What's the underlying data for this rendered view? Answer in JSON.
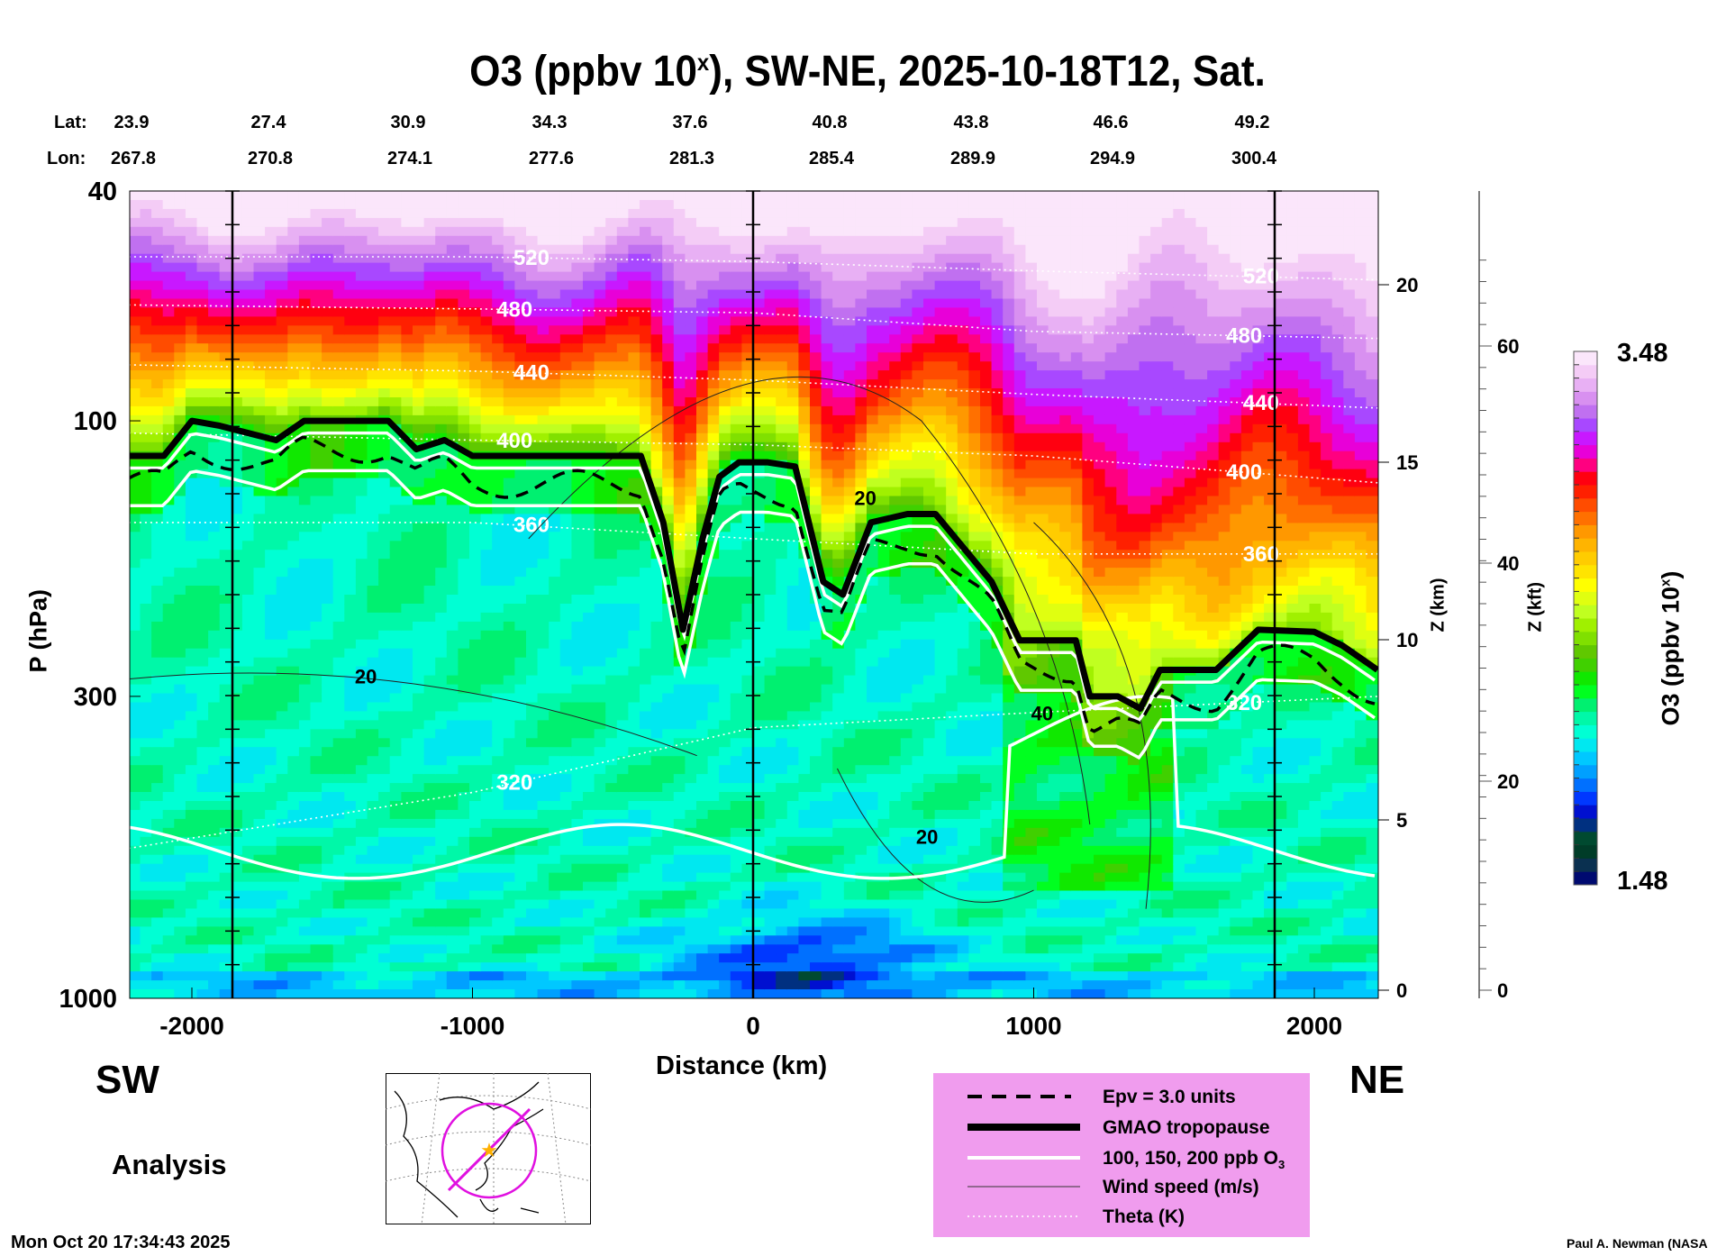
{
  "title": {
    "main": "O3 (ppbv 10",
    "sup": "x",
    "rest": "), SW-NE, 2025-10-18T12, Sat."
  },
  "lat_label": "Lat:",
  "lon_label": "Lon:",
  "lats": [
    "23.9",
    "27.4",
    "30.9",
    "34.3",
    "37.6",
    "40.8",
    "43.8",
    "46.6",
    "49.2"
  ],
  "lons": [
    "267.8",
    "270.8",
    "274.1",
    "277.6",
    "281.3",
    "285.4",
    "289.9",
    "294.9",
    "300.4"
  ],
  "direction_left": "SW",
  "direction_right": "NE",
  "analysis_label": "Analysis",
  "timestamp": "Mon Oct 20 17:34:43 2025",
  "credit": "Paul A. Newman (NASA",
  "legend": {
    "epv": "Epv = 3.0 units",
    "tropopause": "GMAO tropopause",
    "ozone": "100, 150, 200 ppb O",
    "ozone_sub": "3",
    "wind": "Wind speed (m/s)",
    "theta": "Theta (K)"
  },
  "chart_data": {
    "type": "heatmap",
    "title": "O3 (ppbv 10^x), SW-NE, 2025-10-18T12, Sat.",
    "xlabel": "Distance (km)",
    "ylabel": "P (hPa)",
    "z_km_label": "Z (km)",
    "z_kft_label": "Z (kft)",
    "colorbar_label": "O3 (ppbv 10",
    "colorbar_label_sup": "x",
    "colorbar_label_end": ")",
    "xlim": [
      -2225,
      2225
    ],
    "ylim_hpa": [
      1000,
      40
    ],
    "x_ticks": [
      "-2000",
      "-1000",
      "0",
      "1000",
      "2000"
    ],
    "x_tick_values": [
      -2000,
      -1000,
      0,
      1000,
      2000
    ],
    "p_ticks": [
      "40",
      "100",
      "300",
      "1000"
    ],
    "p_tick_values": [
      40,
      100,
      300,
      1000
    ],
    "zkm_ticks": [
      "20",
      "15",
      "10",
      "5",
      "0"
    ],
    "zkft_ticks": [
      "60",
      "40",
      "20",
      "0"
    ],
    "colorbar_range": [
      1.48,
      3.48
    ],
    "colorbar_min_label": "1.48",
    "colorbar_max_label": "3.48",
    "colors": [
      "#000a70",
      "#0a3050",
      "#003c28",
      "#004a30",
      "#003080",
      "#0010d0",
      "#0038ff",
      "#0070ff",
      "#00a0ff",
      "#00c8ff",
      "#00e8f0",
      "#00ffd4",
      "#00f8a8",
      "#00f070",
      "#00ff20",
      "#10e800",
      "#40d000",
      "#60c800",
      "#80e000",
      "#a0f000",
      "#c0ff20",
      "#e0ff10",
      "#ffff00",
      "#ffe400",
      "#ffcc00",
      "#ffb400",
      "#ff9800",
      "#ff7000",
      "#ff4c00",
      "#ff2000",
      "#ff0010",
      "#ff0080",
      "#e800d8",
      "#c818ff",
      "#a848ff",
      "#c070f0",
      "#d890f0",
      "#e8b0f4",
      "#f4ccf6",
      "#fbe6fb"
    ],
    "tropopause_hpa": [
      [
        -2225,
        115
      ],
      [
        -2100,
        115
      ],
      [
        -2000,
        100
      ],
      [
        -1900,
        102
      ],
      [
        -1700,
        108
      ],
      [
        -1600,
        100
      ],
      [
        -1300,
        100
      ],
      [
        -1200,
        112
      ],
      [
        -1100,
        108
      ],
      [
        -1000,
        115
      ],
      [
        -400,
        115
      ],
      [
        -320,
        150
      ],
      [
        -250,
        230
      ],
      [
        -180,
        160
      ],
      [
        -120,
        125
      ],
      [
        -50,
        118
      ],
      [
        50,
        118
      ],
      [
        150,
        120
      ],
      [
        250,
        190
      ],
      [
        320,
        200
      ],
      [
        420,
        150
      ],
      [
        550,
        145
      ],
      [
        650,
        145
      ],
      [
        850,
        190
      ],
      [
        950,
        240
      ],
      [
        1150,
        240
      ],
      [
        1200,
        300
      ],
      [
        1300,
        300
      ],
      [
        1380,
        315
      ],
      [
        1450,
        270
      ],
      [
        1650,
        270
      ],
      [
        1800,
        230
      ],
      [
        2000,
        232
      ],
      [
        2100,
        245
      ],
      [
        2225,
        270
      ]
    ],
    "theta_levels": [
      {
        "label": "320",
        "values_hpa": [
          [
            -2225,
            550
          ],
          [
            -1000,
            440
          ],
          [
            0,
            340
          ],
          [
            1000,
            320
          ],
          [
            2225,
            300
          ]
        ]
      },
      {
        "label": "360",
        "values_hpa": [
          [
            -2225,
            150
          ],
          [
            -1000,
            150
          ],
          [
            0,
            160
          ],
          [
            1000,
            170
          ],
          [
            2225,
            170
          ]
        ]
      },
      {
        "label": "400",
        "values_hpa": [
          [
            -2225,
            105
          ],
          [
            -1000,
            108
          ],
          [
            0,
            110
          ],
          [
            1000,
            115
          ],
          [
            2225,
            128
          ]
        ]
      },
      {
        "label": "440",
        "values_hpa": [
          [
            -2225,
            80
          ],
          [
            -1000,
            82
          ],
          [
            0,
            85
          ],
          [
            1000,
            90
          ],
          [
            2225,
            95
          ]
        ]
      },
      {
        "label": "480",
        "values_hpa": [
          [
            -2225,
            63
          ],
          [
            -1000,
            64
          ],
          [
            0,
            65
          ],
          [
            1000,
            70
          ],
          [
            2225,
            72
          ]
        ]
      },
      {
        "label": "520",
        "values_hpa": [
          [
            -2225,
            52
          ],
          [
            -1000,
            52
          ],
          [
            0,
            53
          ],
          [
            1000,
            55
          ],
          [
            2225,
            57
          ]
        ]
      }
    ],
    "wind_labels": [
      "20",
      "20",
      "20",
      "40"
    ],
    "grid": false
  }
}
